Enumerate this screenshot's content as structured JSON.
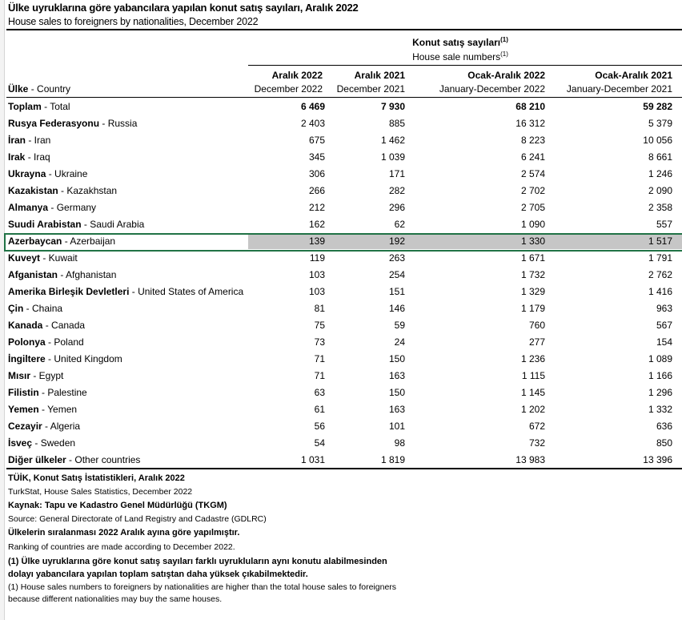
{
  "title": "Ülke uyruklarına göre yabancılara yapılan konut satış sayıları, Aralık 2022",
  "subtitle": "House sales to foreigners by nationalities, December 2022",
  "group_header": {
    "tr": "Konut satış sayıları",
    "en": "House sale numbers",
    "note": "(1)"
  },
  "columns": [
    {
      "tr": "Aralık 2022",
      "en": "December 2022"
    },
    {
      "tr": "Aralık 2021",
      "en": "December 2021"
    },
    {
      "tr": "Ocak-Aralık 2022",
      "en": "January-December 2022"
    },
    {
      "tr": "Ocak-Aralık 2021",
      "en": "January-December 2021"
    }
  ],
  "country_header": {
    "tr": "Ülke",
    "en": " - Country"
  },
  "rows": [
    {
      "tr": "Toplam",
      "en": " - Total",
      "v": [
        "6 469",
        "7 930",
        "68 210",
        "59 282"
      ]
    },
    {
      "tr": "Rusya Federasyonu",
      "en": " - Russia",
      "v": [
        "2 403",
        "885",
        "16 312",
        "5 379"
      ]
    },
    {
      "tr": "İran",
      "en": " - Iran",
      "v": [
        "675",
        "1 462",
        "8 223",
        "10 056"
      ]
    },
    {
      "tr": "Irak",
      "en": " - Iraq",
      "v": [
        "345",
        "1 039",
        "6 241",
        "8 661"
      ]
    },
    {
      "tr": "Ukrayna",
      "en": " - Ukraine",
      "v": [
        "306",
        "171",
        "2 574",
        "1 246"
      ]
    },
    {
      "tr": "Kazakistan",
      "en": " - Kazakhstan",
      "v": [
        "266",
        "282",
        "2 702",
        "2 090"
      ]
    },
    {
      "tr": "Almanya",
      "en": " - Germany",
      "v": [
        "212",
        "296",
        "2 705",
        "2 358"
      ]
    },
    {
      "tr": "Suudi Arabistan",
      "en": " - Saudi Arabia",
      "v": [
        "162",
        "62",
        "1 090",
        "557"
      ]
    },
    {
      "tr": "Azerbaycan",
      "en": " - Azerbaijan",
      "v": [
        "139",
        "192",
        "1 330",
        "1 517"
      ],
      "selected": true
    },
    {
      "tr": "Kuveyt",
      "en": " - Kuwait",
      "v": [
        "119",
        "263",
        "1 671",
        "1 791"
      ]
    },
    {
      "tr": "Afganistan",
      "en": " - Afghanistan",
      "v": [
        "103",
        "254",
        "1 732",
        "2 762"
      ]
    },
    {
      "tr": "Amerika Birleşik Devletleri",
      "en": " - United States of America",
      "v": [
        "103",
        "151",
        "1 329",
        "1 416"
      ]
    },
    {
      "tr": "Çin",
      "en": " - Chaina",
      "v": [
        "81",
        "146",
        "1 179",
        "963"
      ]
    },
    {
      "tr": "Kanada",
      "en": " - Canada",
      "v": [
        "75",
        "59",
        "760",
        "567"
      ]
    },
    {
      "tr": "Polonya",
      "en": " - Poland",
      "v": [
        "73",
        "24",
        "277",
        "154"
      ]
    },
    {
      "tr": "İngiltere",
      "en": " - United Kingdom",
      "v": [
        "71",
        "150",
        "1 236",
        "1 089"
      ]
    },
    {
      "tr": "Mısır",
      "en": " - Egypt",
      "v": [
        "71",
        "163",
        "1 115",
        "1 166"
      ]
    },
    {
      "tr": "Filistin",
      "en": " - Palestine",
      "v": [
        "63",
        "150",
        "1 145",
        "1 296"
      ]
    },
    {
      "tr": "Yemen",
      "en": " - Yemen",
      "v": [
        "61",
        "163",
        "1 202",
        "1 332"
      ]
    },
    {
      "tr": "Cezayir",
      "en": " - Algeria",
      "v": [
        "56",
        "101",
        "672",
        "636"
      ]
    },
    {
      "tr": "İsveç",
      "en": " - Sweden",
      "v": [
        "54",
        "98",
        "732",
        "850"
      ]
    },
    {
      "tr": "Diğer ülkeler",
      "en": " - Other countries",
      "v": [
        "1 031",
        "1 819",
        "13 983",
        "13 396"
      ]
    }
  ],
  "footer": [
    {
      "text": "TÜİK, Konut Satış İstatistikleri, Aralık 2022",
      "bold": true
    },
    {
      "text": "TurkStat, House Sales Statistics, December 2022",
      "bold": false
    },
    {
      "text": "Kaynak: Tapu ve Kadastro Genel Müdürlüğü (TKGM)",
      "bold": true
    },
    {
      "text": "Source: General Directorate of Land Registry and Cadastre (GDLRC)",
      "bold": false
    },
    {
      "text": "Ülkelerin sıralanması 2022 Aralık ayına göre yapılmıştır.",
      "bold": true
    },
    {
      "text": "Ranking of countries are made according to December 2022.",
      "bold": false
    },
    {
      "text": "(1) Ülke uyruklarına göre konut satış sayıları farklı uyrukluların aynı konutu alabilmesinden",
      "bold": true
    },
    {
      "text": "dolayı yabancılara yapılan toplam satıştan daha  yüksek çıkabilmektedir.",
      "bold": true
    },
    {
      "text": "(1) House sales numbers to foreigners by nationalities are higher than the total house sales to foreigners",
      "bold": false
    },
    {
      "text": "because different nationalities may buy the same houses.",
      "bold": false
    }
  ],
  "colors": {
    "selection_border": "#217346",
    "selection_fill": "#c6c6c6"
  }
}
